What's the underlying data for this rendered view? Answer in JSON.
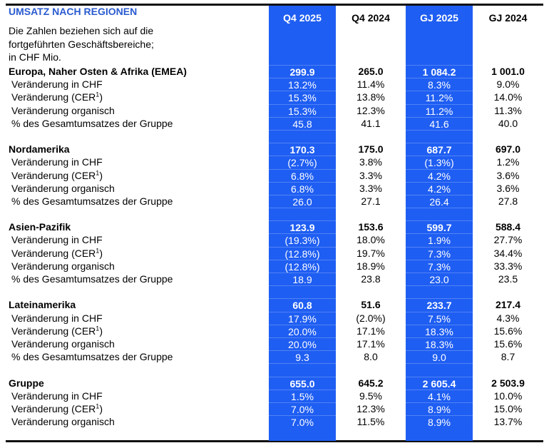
{
  "title": "UMSATZ NACH REGIONEN",
  "intro": [
    "Die Zahlen beziehen sich auf die",
    "fortgeführten Geschäftsbereiche;",
    "in CHF Mio."
  ],
  "columns": [
    "Q4 2025",
    "Q4 2024",
    "GJ 2025",
    "GJ 2024"
  ],
  "colors": {
    "highlight": "#1f5ef2",
    "title": "#2a5bd0"
  },
  "footnote_marker": "1",
  "sections": [
    {
      "name": "Europa, Naher Osten & Afrika (EMEA)",
      "values": [
        "299.9",
        "265.0",
        "1 084.2",
        "1 001.0"
      ],
      "rows": [
        {
          "label": "Veränderung in CHF",
          "values": [
            "13.2%",
            "11.4%",
            "8.3%",
            "9.0%"
          ]
        },
        {
          "label": "Veränderung (CER",
          "sup": true,
          "values": [
            "15.3%",
            "13.8%",
            "11.2%",
            "14.0%"
          ]
        },
        {
          "label": "Veränderung organisch",
          "values": [
            "15.3%",
            "12.3%",
            "11.2%",
            "11.3%"
          ]
        },
        {
          "label": "% des Gesamtumsatzes der Gruppe",
          "values": [
            "45.8",
            "41.1",
            "41.6",
            "40.0"
          ]
        }
      ]
    },
    {
      "name": "Nordamerika",
      "values": [
        "170.3",
        "175.0",
        "687.7",
        "697.0"
      ],
      "rows": [
        {
          "label": "Veränderung in CHF",
          "values": [
            "(2.7%)",
            "3.8%",
            "(1.3%)",
            "1.2%"
          ]
        },
        {
          "label": "Veränderung (CER",
          "sup": true,
          "values": [
            "6.8%",
            "3.3%",
            "4.2%",
            "3.6%"
          ]
        },
        {
          "label": "Veränderung organisch",
          "values": [
            "6.8%",
            "3.3%",
            "4.2%",
            "3.6%"
          ]
        },
        {
          "label": "% des Gesamtumsatzes der Gruppe",
          "values": [
            "26.0",
            "27.1",
            "26.4",
            "27.8"
          ]
        }
      ]
    },
    {
      "name": "Asien-Pazifik",
      "values": [
        "123.9",
        "153.6",
        "599.7",
        "588.4"
      ],
      "rows": [
        {
          "label": "Veränderung in CHF",
          "values": [
            "(19.3%)",
            "18.0%",
            "1.9%",
            "27.7%"
          ]
        },
        {
          "label": "Veränderung (CER",
          "sup": true,
          "values": [
            "(12.8%)",
            "19.7%",
            "7.3%",
            "34.4%"
          ]
        },
        {
          "label": "Veränderung organisch",
          "values": [
            "(12.8%)",
            "18.9%",
            "7.3%",
            "33.3%"
          ]
        },
        {
          "label": "% des Gesamtumsatzes der Gruppe",
          "values": [
            "18.9",
            "23.8",
            "23.0",
            "23.5"
          ]
        }
      ]
    },
    {
      "name": "Lateinamerika",
      "values": [
        "60.8",
        "51.6",
        "233.7",
        "217.4"
      ],
      "rows": [
        {
          "label": "Veränderung in CHF",
          "values": [
            "17.9%",
            "(2.0%)",
            "7.5%",
            "4.3%"
          ]
        },
        {
          "label": "Veränderung (CER",
          "sup": true,
          "values": [
            "20.0%",
            "17.1%",
            "18.3%",
            "15.6%"
          ]
        },
        {
          "label": "Veränderung organisch",
          "values": [
            "20.0%",
            "17.1%",
            "18.3%",
            "15.6%"
          ]
        },
        {
          "label": "% des Gesamtumsatzes der Gruppe",
          "values": [
            "9.3",
            "8.0",
            "9.0",
            "8.7"
          ]
        }
      ]
    },
    {
      "name": "Gruppe",
      "values": [
        "655.0",
        "645.2",
        "2 605.4",
        "2 503.9"
      ],
      "rows": [
        {
          "label": "Veränderung in CHF",
          "values": [
            "1.5%",
            "9.5%",
            "4.1%",
            "10.0%"
          ]
        },
        {
          "label": "Veränderung (CER",
          "sup": true,
          "values": [
            "7.0%",
            "12.3%",
            "8.9%",
            "15.0%"
          ]
        },
        {
          "label": "Veränderung organisch",
          "values": [
            "7.0%",
            "11.5%",
            "8.9%",
            "13.7%"
          ]
        }
      ]
    }
  ]
}
